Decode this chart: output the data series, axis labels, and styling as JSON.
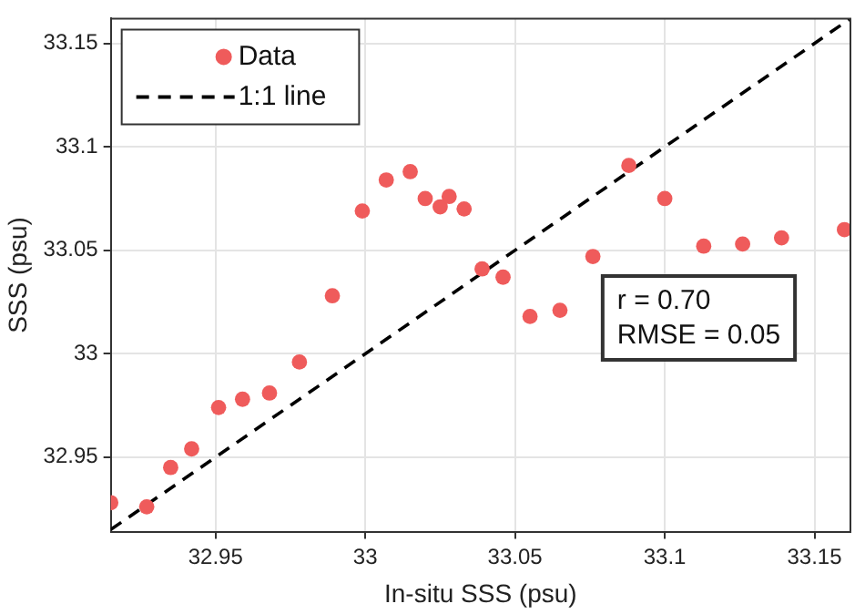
{
  "chart_data": {
    "type": "scatter",
    "xlabel": "In-situ SSS (psu)",
    "ylabel": "SSS (psu)",
    "xlim": [
      32.915,
      33.162
    ],
    "ylim": [
      32.914,
      33.162
    ],
    "xticks": [
      32.95,
      33,
      33.05,
      33.1,
      33.15
    ],
    "yticks": [
      32.95,
      33,
      33.05,
      33.1,
      33.15
    ],
    "grid": true,
    "legend": "top left",
    "marker": "circle",
    "annotations": [
      "r = 0.70",
      "RMSE = 0.05"
    ],
    "series": [
      {
        "name": "Data",
        "color": "#ef5b5b",
        "x": [
          32.915,
          32.927,
          32.935,
          32.942,
          32.951,
          32.959,
          32.968,
          32.978,
          32.989,
          32.999,
          33.007,
          33.015,
          33.02,
          33.025,
          33.028,
          33.033,
          33.039,
          33.046,
          33.055,
          33.065,
          33.076,
          33.088,
          33.1,
          33.113,
          33.126,
          33.139,
          33.16
        ],
        "values": [
          32.928,
          32.926,
          32.945,
          32.954,
          32.974,
          32.978,
          32.981,
          32.996,
          33.028,
          33.069,
          33.084,
          33.088,
          33.075,
          33.071,
          33.076,
          33.07,
          33.041,
          33.037,
          33.018,
          33.021,
          33.047,
          33.091,
          33.075,
          33.052,
          33.053,
          33.056,
          33.06
        ]
      },
      {
        "name": "1:1 line",
        "color": "#000000",
        "type": "line",
        "line_style": "dashed",
        "marker": "none",
        "x": [
          32.915,
          33.162
        ],
        "values": [
          32.915,
          33.162
        ]
      }
    ]
  }
}
